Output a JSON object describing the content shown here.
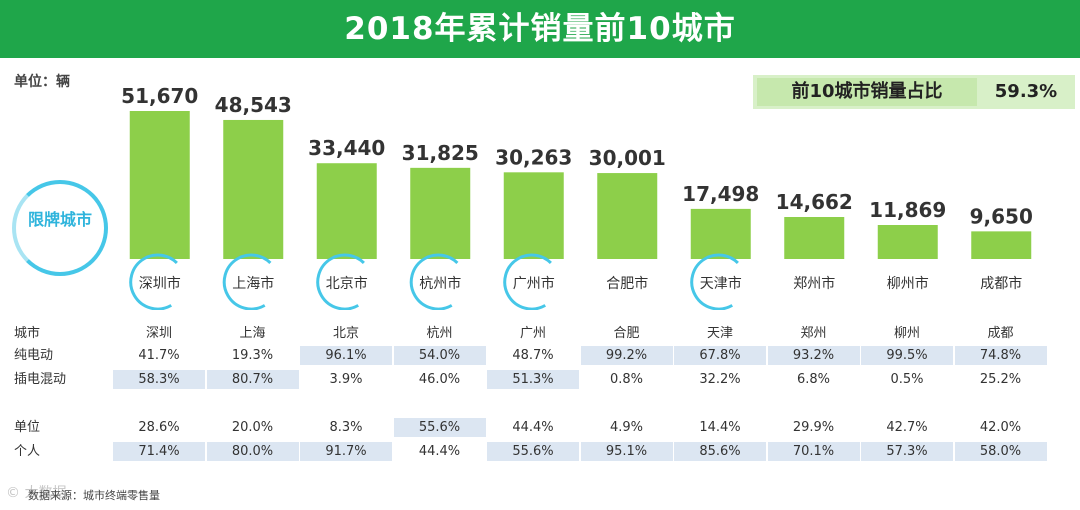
{
  "header": {
    "title": "2018年累计销量前10城市"
  },
  "unit_label": "单位：辆",
  "share": {
    "label": "前10城市销量占比",
    "value": "59.3%"
  },
  "restricted_label": "限牌城市",
  "chart_data": {
    "type": "bar",
    "title": "2018年累计销量前10城市",
    "ylabel": "辆",
    "categories": [
      "深圳市",
      "上海市",
      "北京市",
      "杭州市",
      "广州市",
      "合肥市",
      "天津市",
      "郑州市",
      "柳州市",
      "成都市"
    ],
    "values": [
      51670,
      48543,
      33440,
      31825,
      30263,
      30001,
      17498,
      14662,
      11869,
      9650
    ],
    "value_labels": [
      "51,670",
      "48,543",
      "33,440",
      "31,825",
      "30,263",
      "30,001",
      "17,498",
      "14,662",
      "11,869",
      "9,650"
    ],
    "restricted": [
      true,
      true,
      true,
      true,
      true,
      false,
      true,
      false,
      false,
      false
    ],
    "ylim": [
      0,
      55000
    ],
    "bar_color": "#8dcf4a",
    "circle_color": "#46c7e8"
  },
  "table": {
    "header_label": "城市",
    "cities": [
      "深圳",
      "上海",
      "北京",
      "杭州",
      "广州",
      "合肥",
      "天津",
      "郑州",
      "柳州",
      "成都"
    ],
    "rows": [
      {
        "label": "纯电动",
        "values": [
          "41.7%",
          "19.3%",
          "96.1%",
          "54.0%",
          "48.7%",
          "99.2%",
          "67.8%",
          "93.2%",
          "99.5%",
          "74.8%"
        ],
        "highlight": [
          false,
          false,
          true,
          true,
          false,
          true,
          true,
          true,
          true,
          true
        ]
      },
      {
        "label": "插电混动",
        "values": [
          "58.3%",
          "80.7%",
          "3.9%",
          "46.0%",
          "51.3%",
          "0.8%",
          "32.2%",
          "6.8%",
          "0.5%",
          "25.2%"
        ],
        "highlight": [
          true,
          true,
          false,
          false,
          true,
          false,
          false,
          false,
          false,
          false
        ]
      },
      {
        "label": "单位",
        "values": [
          "28.6%",
          "20.0%",
          "8.3%",
          "55.6%",
          "44.4%",
          "4.9%",
          "14.4%",
          "29.9%",
          "42.7%",
          "42.0%"
        ],
        "highlight": [
          false,
          false,
          false,
          true,
          false,
          false,
          false,
          false,
          false,
          false
        ]
      },
      {
        "label": "个人",
        "values": [
          "71.4%",
          "80.0%",
          "91.7%",
          "44.4%",
          "55.6%",
          "95.1%",
          "85.6%",
          "70.1%",
          "57.3%",
          "58.0%"
        ],
        "highlight": [
          true,
          true,
          true,
          false,
          true,
          true,
          true,
          true,
          true,
          true
        ]
      }
    ]
  },
  "source": "数据来源：城市终端零售量",
  "watermark": "© 大数据"
}
